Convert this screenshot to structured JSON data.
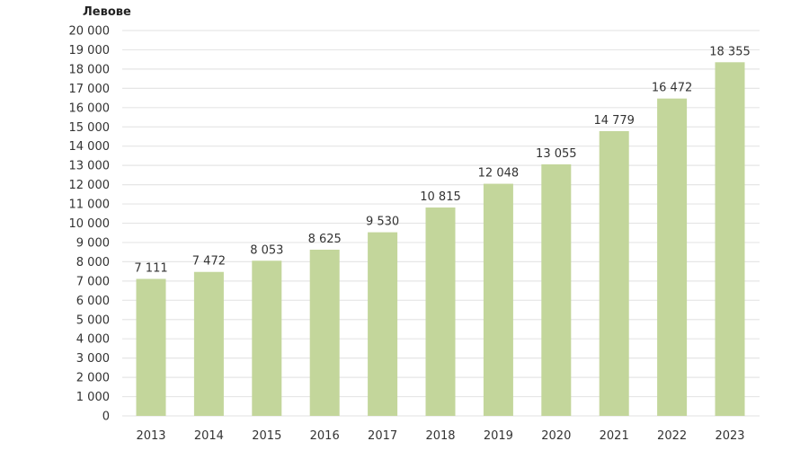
{
  "chart_data": {
    "type": "bar",
    "title": "",
    "ylabel": "Левове",
    "xlabel": "",
    "categories": [
      "2013",
      "2014",
      "2015",
      "2016",
      "2017",
      "2018",
      "2019",
      "2020",
      "2021",
      "2022",
      "2023"
    ],
    "values": [
      7111,
      7472,
      8053,
      8625,
      9530,
      10815,
      12048,
      13055,
      14779,
      16472,
      18355
    ],
    "data_labels": [
      "7 111",
      "7 472",
      "8 053",
      "8 625",
      "9 530",
      "10 815",
      "12 048",
      "13 055",
      "14 779",
      "16 472",
      "18 355"
    ],
    "ylim": [
      0,
      20000
    ],
    "ytick_step": 1000,
    "ytick_labels": [
      "0",
      "1 000",
      "2 000",
      "3 000",
      "4 000",
      "5 000",
      "6 000",
      "7 000",
      "8 000",
      "9 000",
      "10 000",
      "11 000",
      "12 000",
      "13 000",
      "14 000",
      "15 000",
      "16 000",
      "17 000",
      "18 000",
      "19 000",
      "20 000"
    ],
    "grid": true,
    "legend": "none",
    "bar_color": "#c3d69b",
    "grid_color": "#e6e6e6"
  }
}
